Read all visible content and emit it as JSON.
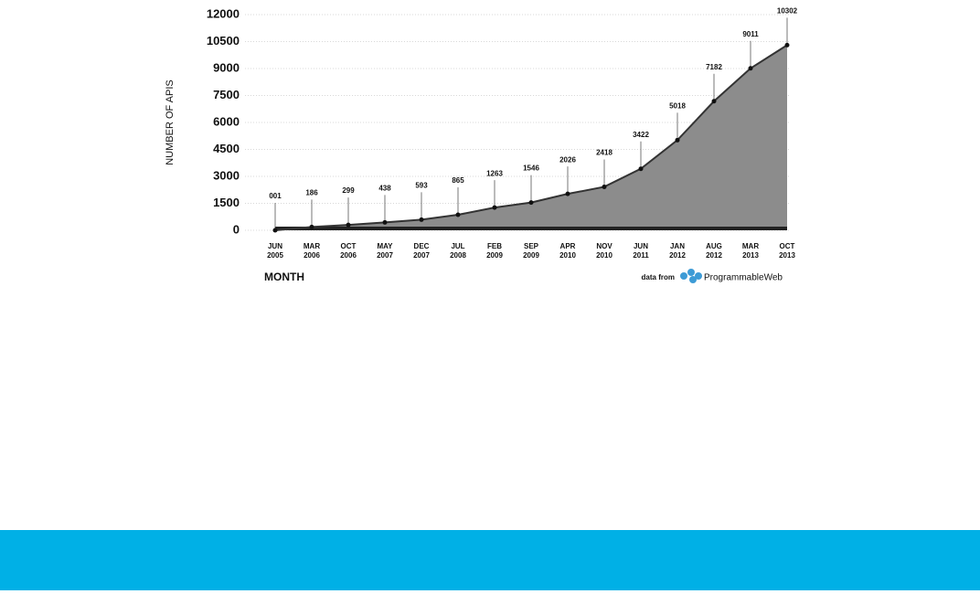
{
  "chart_data": {
    "type": "area",
    "y_label": "NUMBER OF APIS",
    "x_label": "MONTH",
    "source_prefix": "data from",
    "source": "ProgrammableWeb",
    "categories": [
      "JUN 2005",
      "MAR 2006",
      "OCT 2006",
      "MAY 2007",
      "DEC 2007",
      "JUL 2008",
      "FEB 2009",
      "SEP 2009",
      "APR 2010",
      "NOV 2010",
      "JUN 2011",
      "JAN 2012",
      "AUG 2012",
      "MAR 2013",
      "OCT 2013"
    ],
    "values": [
      1,
      186,
      299,
      438,
      593,
      865,
      1263,
      1546,
      2026,
      2418,
      3422,
      5018,
      7182,
      9011,
      10302
    ],
    "value_labels": [
      "001",
      "186",
      "299",
      "438",
      "593",
      "865",
      "1263",
      "1546",
      "2026",
      "2418",
      "3422",
      "5018",
      "7182",
      "9011",
      "10302"
    ],
    "color": "#8c8c8c",
    "ylim": [
      0,
      12000
    ],
    "yticks": [
      0,
      1500,
      3000,
      4500,
      6000,
      7500,
      9000,
      10500,
      12000
    ],
    "grid": true
  }
}
